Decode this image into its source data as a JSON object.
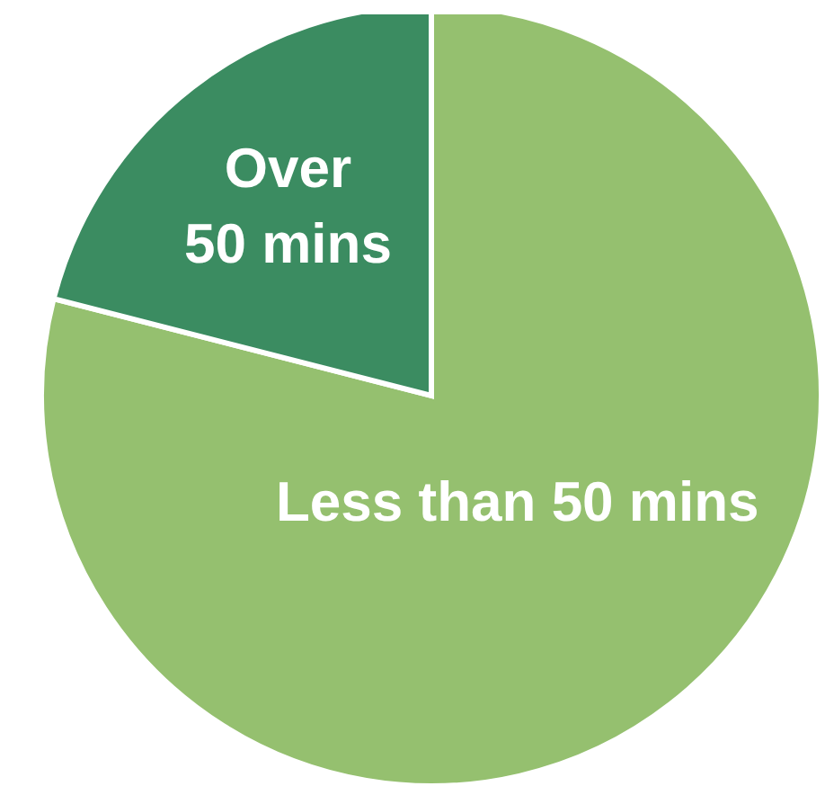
{
  "chart_data": {
    "type": "pie",
    "categories": [
      "Less than 50 mins",
      "Over 50 mins"
    ],
    "values": [
      79,
      21
    ],
    "colors": [
      "#95c06f",
      "#3b8c61"
    ]
  }
}
